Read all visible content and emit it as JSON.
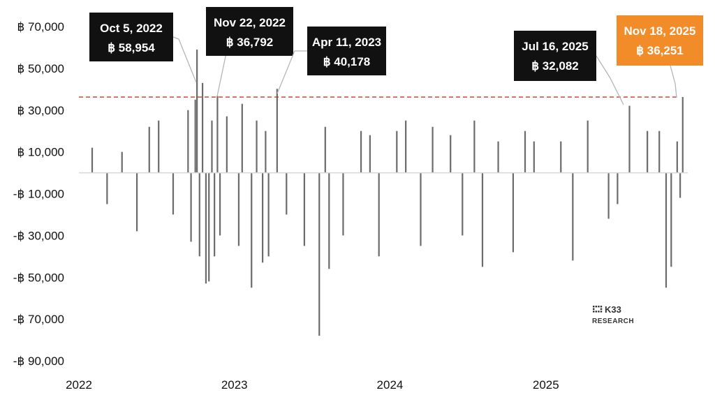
{
  "chart_data": {
    "type": "bar",
    "title": "",
    "xlabel": "",
    "ylabel": "",
    "ylim": [
      -90000,
      70000
    ],
    "xlim": [
      "2022-01-01",
      "2025-11-30"
    ],
    "y_ticks": [
      {
        "value": 70000,
        "label": "฿ 70,000"
      },
      {
        "value": 50000,
        "label": "฿ 50,000"
      },
      {
        "value": 30000,
        "label": "฿ 30,000"
      },
      {
        "value": 10000,
        "label": "฿ 10,000"
      },
      {
        "value": -10000,
        "label": "-฿ 10,000"
      },
      {
        "value": -30000,
        "label": "-฿ 30,000"
      },
      {
        "value": -50000,
        "label": "-฿ 50,000"
      },
      {
        "value": -70000,
        "label": "-฿ 70,000"
      },
      {
        "value": -90000,
        "label": "-฿ 90,000"
      }
    ],
    "x_ticks": [
      {
        "date": "2022-01-01",
        "label": "2022"
      },
      {
        "date": "2023-01-01",
        "label": "2023"
      },
      {
        "date": "2024-01-01",
        "label": "2024"
      },
      {
        "date": "2025-01-01",
        "label": "2025"
      }
    ],
    "reference_line": {
      "value": 36251,
      "color": "#c0392b",
      "style": "dashed"
    },
    "bar_color": "#6b6b6b",
    "grid": false,
    "series": [
      {
        "x": [
          "2022-02-01",
          "2022-03-08",
          "2022-04-12",
          "2022-05-17",
          "2022-06-15",
          "2022-07-07",
          "2022-08-10",
          "2022-09-14",
          "2022-09-21",
          "2022-10-01",
          "2022-10-05",
          "2022-10-11",
          "2022-10-18",
          "2022-10-26",
          "2022-11-02",
          "2022-11-09",
          "2022-11-15",
          "2022-11-22",
          "2022-11-28",
          "2022-12-14",
          "2023-01-11",
          "2023-01-19",
          "2023-02-10",
          "2023-02-22",
          "2023-03-08",
          "2023-03-15",
          "2023-03-22",
          "2023-04-11",
          "2023-05-03",
          "2023-06-14",
          "2023-07-19",
          "2023-08-02",
          "2023-08-11",
          "2023-09-13",
          "2023-10-25",
          "2023-11-15",
          "2023-12-06",
          "2024-01-17",
          "2024-02-07",
          "2024-03-13",
          "2024-04-10",
          "2024-05-22",
          "2024-06-19",
          "2024-07-17",
          "2024-08-05",
          "2024-09-11",
          "2024-10-16",
          "2024-11-13",
          "2024-12-04",
          "2025-02-05",
          "2025-03-05",
          "2025-04-09",
          "2025-05-28",
          "2025-06-18",
          "2025-07-16",
          "2025-08-27",
          "2025-09-24",
          "2025-10-10",
          "2025-10-22",
          "2025-11-05",
          "2025-11-12",
          "2025-11-18"
        ],
        "values": [
          12000,
          -15000,
          10000,
          -28000,
          22000,
          25000,
          -20000,
          30000,
          -33000,
          35000,
          58954,
          -40000,
          43000,
          -53000,
          -52000,
          25000,
          -40000,
          36792,
          -30000,
          27000,
          -35000,
          33000,
          -55000,
          25000,
          -43000,
          20000,
          -40000,
          40178,
          -20000,
          -35000,
          -78000,
          22000,
          -46000,
          -30000,
          20000,
          18000,
          -40000,
          20000,
          25000,
          -35000,
          22000,
          18000,
          -30000,
          25000,
          -45000,
          15000,
          -38000,
          20000,
          15000,
          15000,
          -42000,
          25000,
          -22000,
          -15000,
          32082,
          20000,
          20000,
          -55000,
          -45000,
          15000,
          -12000,
          36251
        ]
      }
    ],
    "annotations": [
      {
        "date": "Oct 5, 2022",
        "value": "฿ 58,954",
        "highlight": false
      },
      {
        "date": "Nov 22, 2022",
        "value": "฿ 36,792",
        "highlight": false
      },
      {
        "date": "Apr 11, 2023",
        "value": "฿ 40,178",
        "highlight": false
      },
      {
        "date": "Jul 16, 2025",
        "value": "฿ 32,082",
        "highlight": false
      },
      {
        "date": "Nov 18, 2025",
        "value": "฿ 36,251",
        "highlight": true
      }
    ],
    "annotation_color": "#111111",
    "highlight_color": "#f28c28"
  },
  "logo": {
    "name": "K33",
    "subtitle": "RESEARCH"
  }
}
